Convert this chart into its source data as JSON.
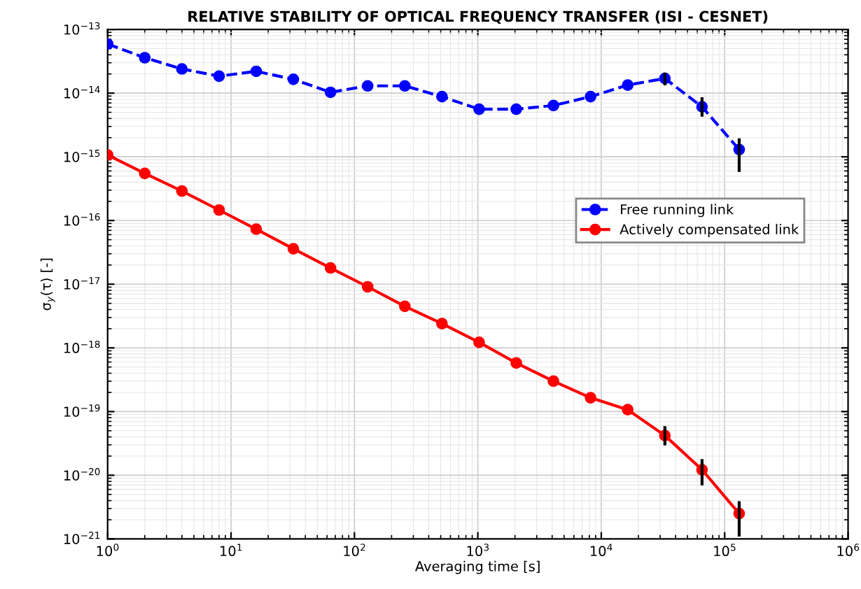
{
  "chart_data": {
    "type": "line",
    "title": "RELATIVE STABILITY OF OPTICAL FREQUENCY TRANSFER (ISI - CESNET)",
    "xlabel": "Averaging time [s]",
    "ylabel": "σ$_{y}$(τ) [-]",
    "x": [
      1,
      2,
      4,
      8,
      16,
      32,
      64,
      128,
      256,
      512,
      1024,
      2048,
      4096,
      8192,
      16384,
      32768,
      65536,
      131072
    ],
    "series": [
      {
        "name": "Free running link",
        "color": "#0000ff",
        "line_style": "dashed",
        "values": [
          5.9e-14,
          3.6e-14,
          2.4e-14,
          1.85e-14,
          2.2e-14,
          1.65e-14,
          1.03e-14,
          1.3e-14,
          1.3e-14,
          8.8e-15,
          5.6e-15,
          5.6e-15,
          6.4e-15,
          8.8e-15,
          1.34e-14,
          1.7e-14,
          6.1e-15,
          1.3e-15
        ],
        "errors": [
          null,
          null,
          null,
          null,
          null,
          null,
          null,
          null,
          null,
          null,
          null,
          null,
          null,
          null,
          null,
          [
            1.4e-14,
            2e-14
          ],
          [
            4.5e-15,
            8.2e-15
          ],
          [
            6.1e-16,
            1.85e-15
          ]
        ]
      },
      {
        "name": "Actively compensated link",
        "color": "#ff0000",
        "line_style": "solid",
        "values": [
          1.07e-15,
          5.5e-16,
          2.9e-16,
          1.46e-16,
          7.3e-17,
          3.6e-17,
          1.8e-17,
          9.1e-18,
          4.5e-18,
          2.4e-18,
          1.22e-18,
          5.8e-19,
          3e-19,
          1.65e-19,
          1.07e-19,
          4.2e-20,
          1.22e-20,
          2.5e-21
        ],
        "errors": [
          null,
          null,
          null,
          null,
          null,
          null,
          null,
          null,
          null,
          null,
          null,
          null,
          null,
          null,
          null,
          [
            3.1e-20,
            5.6e-20
          ],
          [
            7.3e-21,
            1.7e-20
          ],
          [
            1.15e-21,
            3.7e-21
          ]
        ]
      }
    ],
    "log": "xy",
    "marker": "circle",
    "grid": true,
    "legend": "right",
    "xlim": [
      1,
      1000000
    ],
    "ylim": [
      1e-21,
      1e-13
    ],
    "xticks": [
      {
        "value": 1,
        "label": "10$^{0}$"
      },
      {
        "value": 10,
        "label": "10$^{1}$"
      },
      {
        "value": 100,
        "label": "10$^{2}$"
      },
      {
        "value": 1000,
        "label": "10$^{3}$"
      },
      {
        "value": 10000,
        "label": "10$^{4}$"
      },
      {
        "value": 100000,
        "label": "10$^{5}$"
      },
      {
        "value": 1000000,
        "label": "10$^{6}$"
      }
    ],
    "yticks": [
      {
        "value": 1e-21,
        "label": "10$^{−21}$"
      },
      {
        "value": 1e-20,
        "label": "10$^{−20}$"
      },
      {
        "value": 1e-19,
        "label": "10$^{−19}$"
      },
      {
        "value": 1e-18,
        "label": "10$^{−18}$"
      },
      {
        "value": 1e-17,
        "label": "10$^{−17}$"
      },
      {
        "value": 1e-16,
        "label": "10$^{−16}$"
      },
      {
        "value": 1e-15,
        "label": "10$^{−15}$"
      },
      {
        "value": 1e-14,
        "label": "10$^{−14}$"
      },
      {
        "value": 1e-13,
        "label": "10$^{−13}$"
      }
    ]
  }
}
